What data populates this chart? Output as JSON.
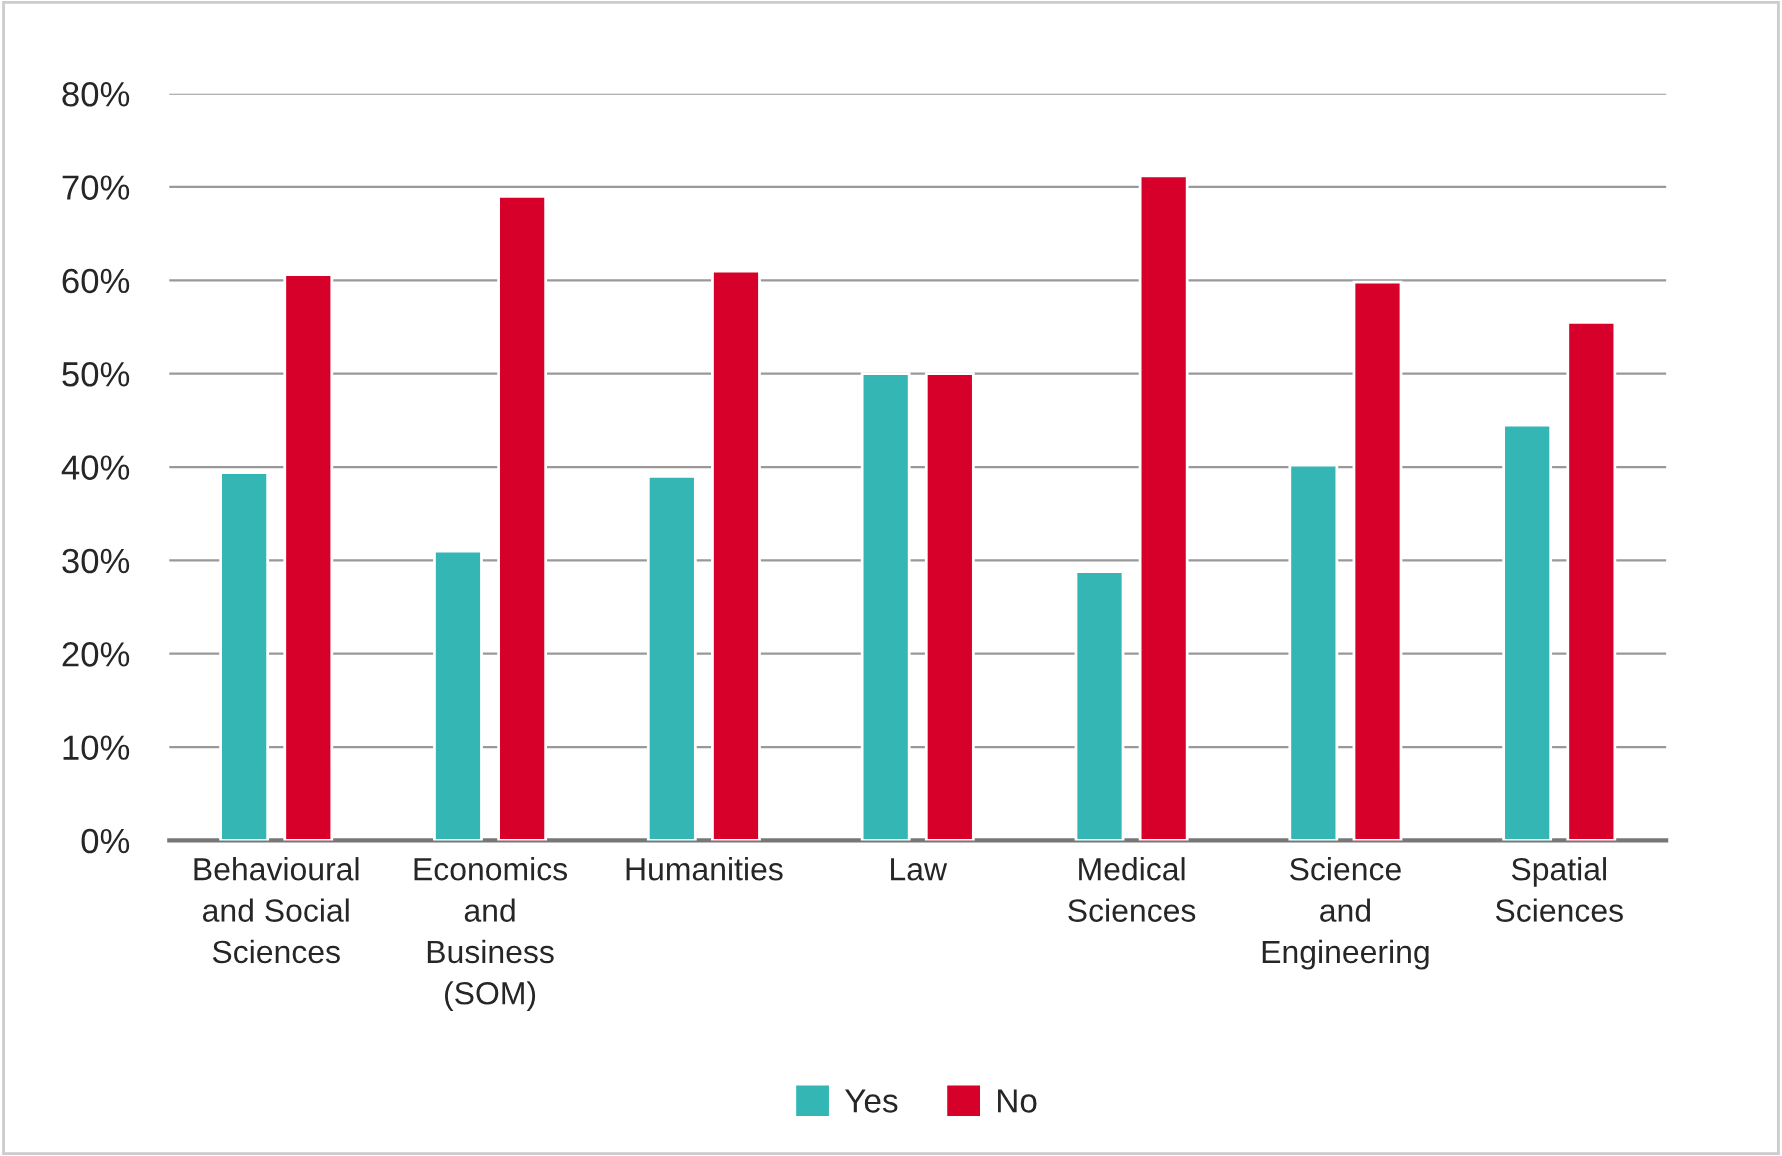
{
  "chart_data": {
    "type": "bar",
    "categories": [
      "Behavioural\nand Social\nSciences",
      "Economics\nand\nBusiness\n(SOM)",
      "Humanities",
      "Law",
      "Medical\nSciences",
      "Science\nand\nEngineering",
      "Spatial\nSciences"
    ],
    "series": [
      {
        "name": "Yes",
        "color": "#33b6b4",
        "values": [
          39.4,
          31,
          39,
          50,
          28.8,
          40.2,
          44.5
        ]
      },
      {
        "name": "No",
        "color": "#d6002a",
        "values": [
          60.6,
          69,
          61,
          50,
          71.2,
          59.8,
          55.5
        ]
      }
    ],
    "ylim": [
      0,
      80
    ],
    "yticks": [
      {
        "value": 0,
        "label": "0%"
      },
      {
        "value": 10,
        "label": "10%"
      },
      {
        "value": 20,
        "label": "20%"
      },
      {
        "value": 30,
        "label": "30%"
      },
      {
        "value": 40,
        "label": "40%"
      },
      {
        "value": 50,
        "label": "50%"
      },
      {
        "value": 60,
        "label": "60%"
      },
      {
        "value": 70,
        "label": "70%"
      },
      {
        "value": 80,
        "label": "80%"
      }
    ],
    "grid": "y",
    "legend": "bottom"
  }
}
